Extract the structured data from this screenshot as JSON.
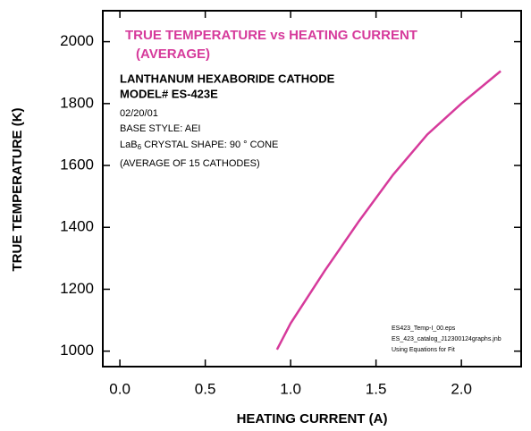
{
  "chart_data": {
    "type": "line",
    "title_lines": [
      "TRUE TEMPERATURE vs HEATING CURRENT",
      "(AVERAGE)"
    ],
    "annotations": [
      "LANTHANUM HEXABORIDE CATHODE",
      "MODEL# ES-423E"
    ],
    "notes": [
      "02/20/01",
      "BASE STYLE: AEI"
    ],
    "shape_note": {
      "text": "LaB",
      "sub": "6",
      "rest": " CRYSTAL SHAPE:  90 ° CONE"
    },
    "average_note": "(AVERAGE OF 15 CATHODES)",
    "footnotes": [
      "ES423_Temp-I_00.eps",
      "ES_423_catalog_J12300124graphs.jnb",
      "Using Equations for Fit"
    ],
    "xlabel": "HEATING CURRENT (A)",
    "ylabel": "TRUE TEMPERATURE (K)",
    "x": [
      0.92,
      1.0,
      1.2,
      1.4,
      1.6,
      1.8,
      2.0,
      2.23
    ],
    "series": [
      {
        "name": "Average",
        "color": "#d63a9b",
        "values": [
          1005,
          1090,
          1260,
          1420,
          1570,
          1700,
          1800,
          1905
        ]
      }
    ],
    "xlim": [
      -0.1,
      2.35
    ],
    "xticks": [
      {
        "value": 0,
        "label": "0.0"
      },
      0.5,
      {
        "value": 1,
        "label": "1.0"
      },
      1.5,
      {
        "value": 2,
        "label": "2.0"
      }
    ],
    "ylim": [
      950,
      2100
    ],
    "yticks": [
      1000,
      1200,
      1400,
      1600,
      1800,
      2000
    ]
  }
}
